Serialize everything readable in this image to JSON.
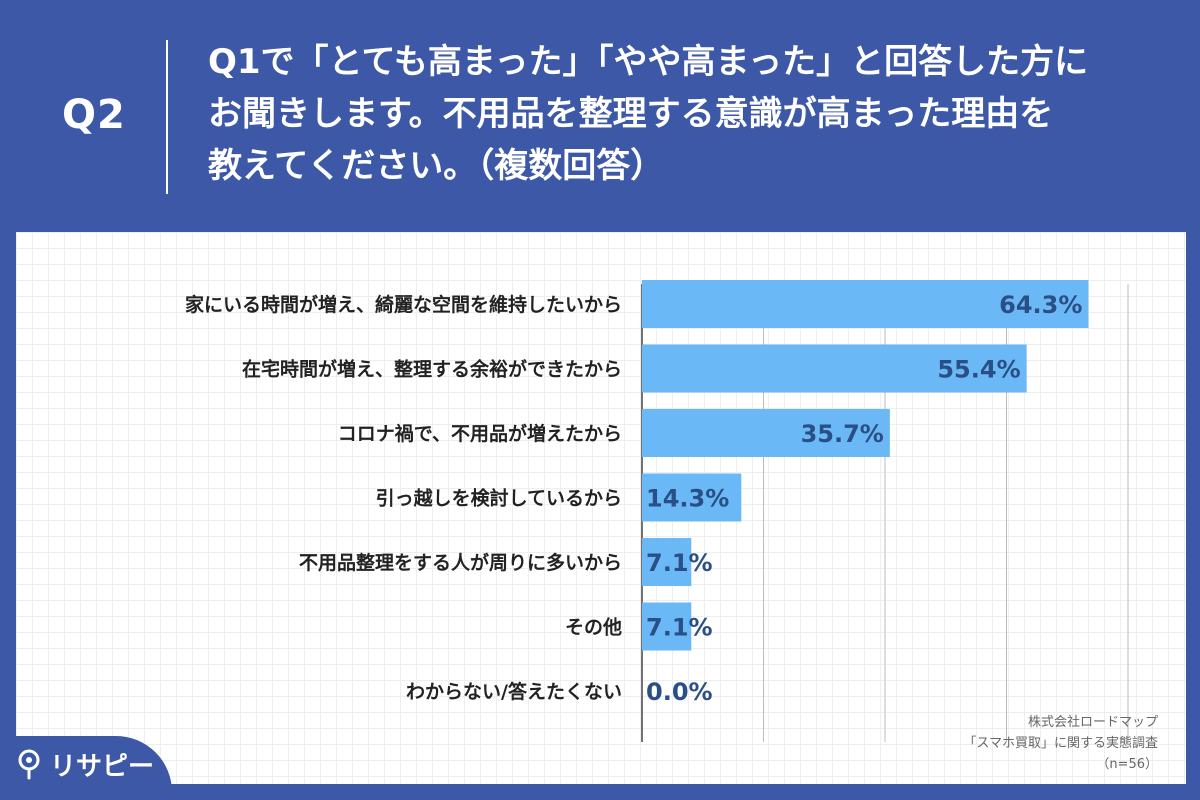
{
  "question": {
    "label": "Q2",
    "lines": [
      "Q1で「とても高まった」「やや高まった」と回答した方に",
      "お聞きします。不用品を整理する意識が高まった理由を",
      "教えてください。（複数回答）"
    ]
  },
  "chart_data": {
    "type": "bar",
    "orientation": "horizontal",
    "categories": [
      "家にいる時間が増え、綺麗な空間を維持したいから",
      "在宅時間が増え、整理する余裕ができたから",
      "コロナ禍で、不用品が増えたから",
      "引っ越しを検討しているから",
      "不用品整理をする人が周りに多いから",
      "その他",
      "わからない/答えたくない"
    ],
    "values": [
      64.3,
      55.4,
      35.7,
      14.3,
      7.1,
      7.1,
      0.0
    ],
    "value_labels": [
      "64.3%",
      "55.4%",
      "35.7%",
      "14.3%",
      "7.1%",
      "7.1%",
      "0.0%"
    ],
    "xlim": [
      0,
      70
    ],
    "gridlines": [
      0,
      17.5,
      35,
      52.5,
      70
    ],
    "bar_color": "#6ab8f5",
    "label_color": "#2a4f86"
  },
  "source": {
    "lines": [
      "株式会社ロードマップ",
      "「スマホ買取」に関する実態調査",
      "（n=56）"
    ]
  },
  "brand": {
    "name": "リサピー",
    "background": "#3c58a6"
  }
}
